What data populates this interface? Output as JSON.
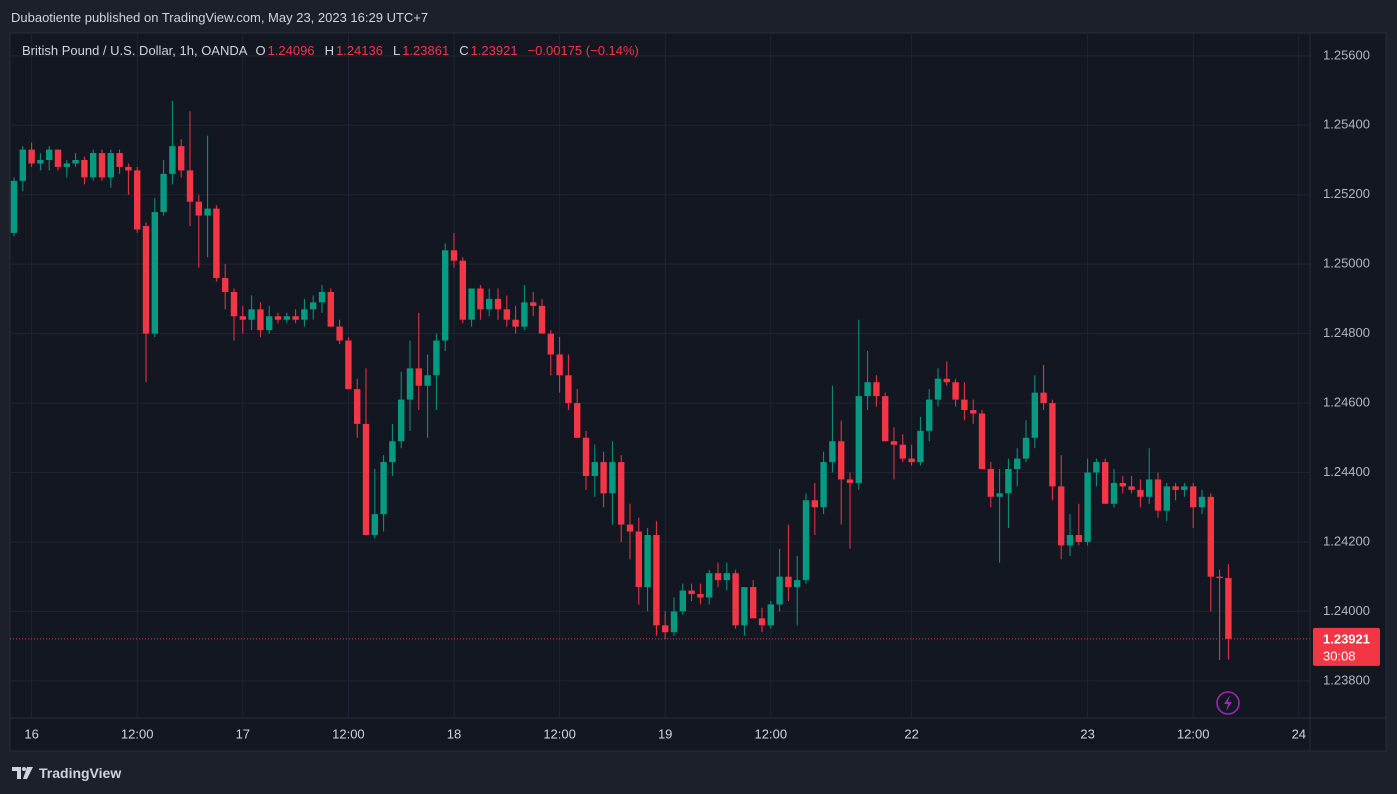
{
  "published": "Dubaotiente published on TradingView.com, May 23, 2023 16:29 UTC+7",
  "footer": {
    "brand": "TradingView"
  },
  "chart_data": {
    "type": "candlestick",
    "symbol": "British Pound / U.S. Dollar, 1h, OANDA",
    "ohlc_letters": [
      "O",
      "H",
      "L",
      "C"
    ],
    "change_label": "−0.00175 (−0.14%)",
    "countdown": "30:08",
    "up_color": "#089981",
    "down_color": "#f23645",
    "grid": true,
    "categories": [
      null,
      null,
      "16",
      null,
      null,
      null,
      null,
      null,
      null,
      null,
      null,
      null,
      null,
      null,
      "12:00",
      null,
      null,
      null,
      null,
      null,
      null,
      null,
      null,
      null,
      null,
      null,
      "17",
      null,
      null,
      null,
      null,
      null,
      null,
      null,
      null,
      null,
      null,
      null,
      "12:00",
      null,
      null,
      null,
      null,
      null,
      null,
      null,
      null,
      null,
      null,
      null,
      "18",
      null,
      null,
      null,
      null,
      null,
      null,
      null,
      null,
      null,
      null,
      null,
      "12:00",
      null,
      null,
      null,
      null,
      null,
      null,
      null,
      null,
      null,
      null,
      null,
      "19",
      null,
      null,
      null,
      null,
      null,
      null,
      null,
      null,
      null,
      null,
      null,
      "12:00",
      null,
      null,
      null,
      null,
      null,
      null,
      null,
      null,
      null,
      null,
      null,
      null,
      null,
      null,
      null,
      "22",
      null,
      null,
      null,
      null,
      null,
      null,
      null,
      null,
      null,
      null,
      null,
      null,
      null,
      null,
      null,
      null,
      null,
      null,
      null,
      "23",
      null,
      null,
      null,
      null,
      null,
      null,
      null,
      null,
      null,
      null,
      null,
      "12:00",
      null,
      null,
      null,
      null,
      null,
      null,
      null,
      null,
      null,
      null,
      null,
      "24"
    ],
    "open": [
      1.2509,
      1.2524,
      1.2533,
      1.2529,
      1.253,
      1.2533,
      1.2528,
      1.2529,
      1.253,
      1.2525,
      1.2532,
      1.2525,
      1.2532,
      1.2528,
      1.2527,
      1.2511,
      1.248,
      1.2515,
      1.2526,
      1.2534,
      1.2527,
      1.2518,
      1.2514,
      1.2516,
      1.2496,
      1.2492,
      1.2485,
      1.2484,
      1.2487,
      1.2481,
      1.2485,
      1.2484,
      1.2485,
      1.2484,
      1.2487,
      1.2489,
      1.2492,
      1.2482,
      1.2478,
      1.2464,
      1.2454,
      1.2422,
      1.2428,
      1.2443,
      1.2449,
      1.2461,
      1.247,
      1.2465,
      1.2468,
      1.2478,
      1.2504,
      1.2501,
      1.2484,
      1.2493,
      1.2487,
      1.249,
      1.2487,
      1.2484,
      1.2482,
      1.2489,
      1.2488,
      1.248,
      1.2474,
      1.2468,
      1.246,
      1.245,
      1.2439,
      1.2443,
      1.2434,
      1.2443,
      1.2425,
      1.2423,
      1.2407,
      1.2422,
      1.2396,
      1.2394,
      1.24,
      1.2406,
      1.2405,
      1.2404,
      1.2411,
      1.2409,
      1.2411,
      1.2396,
      1.2407,
      1.2398,
      1.2396,
      1.2402,
      1.241,
      1.2407,
      1.2409,
      1.2432,
      1.243,
      1.2443,
      1.2449,
      1.2438,
      1.2437,
      1.2462,
      1.2466,
      1.2462,
      1.2449,
      1.2448,
      1.2444,
      1.2443,
      1.2452,
      1.2461,
      1.2467,
      1.2466,
      1.2461,
      1.2458,
      1.2457,
      1.2441,
      1.2433,
      1.2434,
      1.2441,
      1.2444,
      1.245,
      1.2463,
      1.246,
      1.2436,
      1.2419,
      1.2422,
      1.242,
      1.244,
      1.2443,
      1.2431,
      1.2437,
      1.2436,
      1.2435,
      1.2433,
      1.2438,
      1.2429,
      1.2436,
      1.2435,
      1.2436,
      1.243,
      1.2433,
      1.241,
      1.24096,
      null,
      null,
      null,
      null,
      null,
      null,
      null,
      null
    ],
    "high": [
      1.2525,
      1.2534,
      1.2535,
      1.2532,
      1.2534,
      1.2533,
      1.253,
      1.2532,
      1.2531,
      1.2533,
      1.2533,
      1.2533,
      1.2533,
      1.2529,
      1.2528,
      1.2512,
      1.2519,
      1.253,
      1.2547,
      1.2536,
      1.2544,
      1.252,
      1.2537,
      1.2517,
      1.25,
      1.2493,
      1.2488,
      1.2491,
      1.2489,
      1.2488,
      1.2486,
      1.2486,
      1.2487,
      1.249,
      1.2491,
      1.2494,
      1.2493,
      1.2484,
      1.2479,
      1.2467,
      1.247,
      1.2441,
      1.2445,
      1.2454,
      1.2469,
      1.2478,
      1.2486,
      1.2474,
      1.248,
      1.2506,
      1.2509,
      1.2502,
      1.2493,
      1.2494,
      1.2493,
      1.2493,
      1.2491,
      1.2488,
      1.2494,
      1.2492,
      1.249,
      1.2481,
      1.2479,
      1.2474,
      1.2464,
      1.2452,
      1.2448,
      1.2446,
      1.2449,
      1.2445,
      1.2431,
      1.2427,
      1.2424,
      1.2426,
      1.24,
      1.2404,
      1.2408,
      1.2408,
      1.2408,
      1.2412,
      1.2414,
      1.2414,
      1.2412,
      1.2407,
      1.2409,
      1.2401,
      1.2403,
      1.2418,
      1.2425,
      1.2416,
      1.2434,
      1.2437,
      1.2446,
      1.2465,
      1.2455,
      1.244,
      1.2484,
      1.2475,
      1.2468,
      1.2463,
      1.2453,
      1.2451,
      1.2448,
      1.2456,
      1.2464,
      1.247,
      1.2472,
      1.2467,
      1.2466,
      1.2461,
      1.2458,
      1.2443,
      1.2441,
      1.2444,
      1.2447,
      1.2455,
      1.2468,
      1.2471,
      1.2461,
      1.2445,
      1.2428,
      1.2431,
      1.2444,
      1.2444,
      1.2444,
      1.2441,
      1.2439,
      1.2439,
      1.2438,
      1.2447,
      1.244,
      1.2437,
      1.2437,
      1.2437,
      1.2437,
      1.2435,
      1.2434,
      1.2412,
      1.24136,
      null,
      null,
      null,
      null,
      null,
      null,
      null,
      null
    ],
    "low": [
      1.2508,
      1.2521,
      1.2528,
      1.2527,
      1.2527,
      1.2527,
      1.2525,
      1.2528,
      1.2523,
      1.2524,
      1.2524,
      1.2522,
      1.2526,
      1.252,
      1.2509,
      1.2466,
      1.2479,
      1.2514,
      1.2523,
      1.2525,
      1.2511,
      1.2499,
      1.2502,
      1.2495,
      1.2487,
      1.2478,
      1.248,
      1.2481,
      1.2479,
      1.248,
      1.2483,
      1.2483,
      1.2483,
      1.2482,
      1.2484,
      1.2486,
      1.2482,
      1.2477,
      1.2464,
      1.245,
      1.2422,
      1.2421,
      1.2423,
      1.2439,
      1.2447,
      1.2452,
      1.2458,
      1.245,
      1.2458,
      1.2475,
      1.2499,
      1.2483,
      1.2482,
      1.2484,
      1.2485,
      1.2484,
      1.2482,
      1.248,
      1.2481,
      1.2485,
      1.248,
      1.2468,
      1.2463,
      1.2458,
      1.245,
      1.2435,
      1.2433,
      1.243,
      1.2425,
      1.242,
      1.2415,
      1.2402,
      1.24,
      1.2393,
      1.2392,
      1.2393,
      1.2399,
      1.2403,
      1.2402,
      1.2402,
      1.2407,
      1.2406,
      1.2395,
      1.2393,
      1.2398,
      1.2394,
      1.2395,
      1.24,
      1.2403,
      1.2396,
      1.2408,
      1.2422,
      1.2428,
      1.244,
      1.2425,
      1.2418,
      1.2435,
      1.2458,
      1.2459,
      1.2449,
      1.2438,
      1.2443,
      1.2442,
      1.2442,
      1.2449,
      1.2459,
      1.2465,
      1.2459,
      1.2455,
      1.2454,
      1.2441,
      1.243,
      1.2414,
      1.2424,
      1.2436,
      1.2443,
      1.2447,
      1.2458,
      1.2432,
      1.2415,
      1.2416,
      1.2419,
      1.2419,
      1.2436,
      1.2431,
      1.243,
      1.2434,
      1.2434,
      1.243,
      1.2431,
      1.2427,
      1.2426,
      1.2432,
      1.2433,
      1.2424,
      1.2428,
      1.24,
      1.2386,
      1.23861,
      null,
      null,
      null,
      null,
      null,
      null,
      null,
      null
    ],
    "close": [
      1.2524,
      1.2533,
      1.2529,
      1.253,
      1.2533,
      1.2528,
      1.2529,
      1.253,
      1.2525,
      1.2532,
      1.2525,
      1.2532,
      1.2528,
      1.2527,
      1.251,
      1.248,
      1.2515,
      1.2526,
      1.2534,
      1.2527,
      1.2518,
      1.2514,
      1.2516,
      1.2496,
      1.2492,
      1.2485,
      1.2484,
      1.2487,
      1.2481,
      1.2485,
      1.2484,
      1.2485,
      1.2484,
      1.2487,
      1.2489,
      1.2492,
      1.2482,
      1.2478,
      1.2464,
      1.2454,
      1.2422,
      1.2428,
      1.2443,
      1.2449,
      1.2461,
      1.247,
      1.2465,
      1.2468,
      1.2478,
      1.2504,
      1.2501,
      1.2484,
      1.2493,
      1.2487,
      1.249,
      1.2487,
      1.2484,
      1.2482,
      1.2489,
      1.2488,
      1.248,
      1.2474,
      1.2468,
      1.246,
      1.245,
      1.2439,
      1.2443,
      1.2434,
      1.2443,
      1.2425,
      1.2423,
      1.2407,
      1.2422,
      1.2396,
      1.2394,
      1.24,
      1.2406,
      1.2405,
      1.2404,
      1.2411,
      1.2409,
      1.2411,
      1.2396,
      1.2407,
      1.2398,
      1.2396,
      1.2402,
      1.241,
      1.2407,
      1.2409,
      1.2432,
      1.243,
      1.2443,
      1.2449,
      1.2438,
      1.2437,
      1.2462,
      1.2466,
      1.2462,
      1.2449,
      1.2448,
      1.2444,
      1.2443,
      1.2452,
      1.2461,
      1.2467,
      1.2466,
      1.2461,
      1.2458,
      1.2457,
      1.2441,
      1.2433,
      1.2434,
      1.2441,
      1.2444,
      1.245,
      1.2463,
      1.246,
      1.2436,
      1.2419,
      1.2422,
      1.242,
      1.244,
      1.2443,
      1.2431,
      1.2437,
      1.2436,
      1.2435,
      1.2433,
      1.2438,
      1.2429,
      1.2436,
      1.2435,
      1.2436,
      1.243,
      1.2433,
      1.241,
      1.24096,
      1.23921,
      null,
      null,
      null,
      null,
      null,
      null,
      null,
      null
    ],
    "ylim": [
      1.23693,
      1.2566
    ],
    "yticks": [
      {
        "value": 1.238,
        "label": "1.23800"
      },
      {
        "value": 1.24,
        "label": "1.24000"
      },
      {
        "value": 1.242,
        "label": "1.24200"
      },
      {
        "value": 1.244,
        "label": "1.24400"
      },
      {
        "value": 1.246,
        "label": "1.24600"
      },
      {
        "value": 1.248,
        "label": "1.24800"
      },
      {
        "value": 1.25,
        "label": "1.25000"
      },
      {
        "value": 1.252,
        "label": "1.25200"
      },
      {
        "value": 1.254,
        "label": "1.25400"
      },
      {
        "value": 1.256,
        "label": "1.25600"
      }
    ]
  }
}
